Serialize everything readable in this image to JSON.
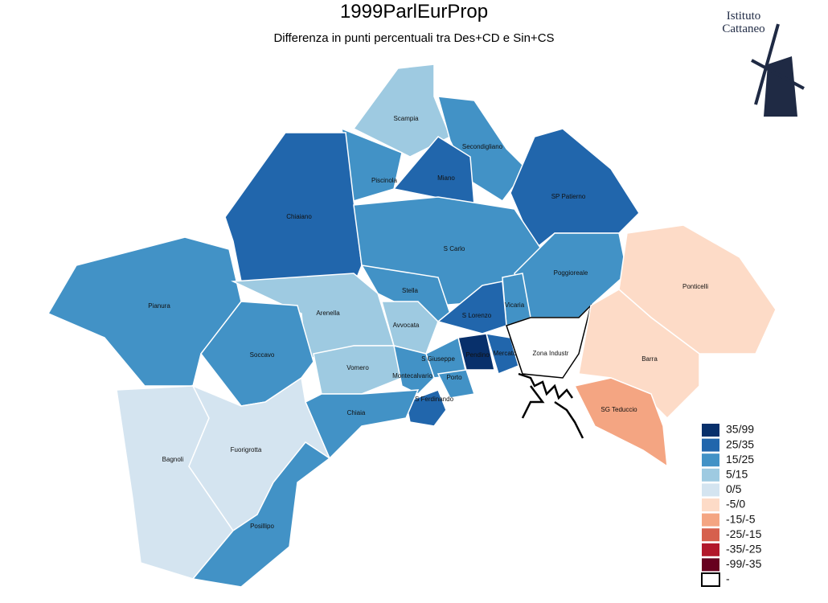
{
  "header": {
    "title": "1999ParlEurProp",
    "subtitle": "Differenza in punti percentuali tra Des+CD e Sin+CS"
  },
  "logo": {
    "lines": [
      "Istituto",
      "Cattaneo"
    ]
  },
  "legend": [
    {
      "label": "35/99",
      "color": "#08306b"
    },
    {
      "label": "25/35",
      "color": "#2166ac"
    },
    {
      "label": "15/25",
      "color": "#4292c6"
    },
    {
      "label": "5/15",
      "color": "#9ecae1"
    },
    {
      "label": "0/5",
      "color": "#d4e4f0"
    },
    {
      "label": "-5/0",
      "color": "#fddbc7"
    },
    {
      "label": "-15/-5",
      "color": "#f4a582"
    },
    {
      "label": "-25/-15",
      "color": "#d6604d"
    },
    {
      "label": "-35/-25",
      "color": "#b2182b"
    },
    {
      "label": "-99/-35",
      "color": "#67001f"
    },
    {
      "label": "-",
      "color": "#ffffff"
    }
  ],
  "districts": [
    {
      "name": "Scampia",
      "class": 3
    },
    {
      "name": "Secondigliano",
      "class": 2
    },
    {
      "name": "Miano",
      "class": 1
    },
    {
      "name": "Piscinola",
      "class": 2
    },
    {
      "name": "Chiaiano",
      "class": 1
    },
    {
      "name": "SP Patierno",
      "class": 1
    },
    {
      "name": "S Carlo",
      "class": 2
    },
    {
      "name": "Poggioreale",
      "class": 2
    },
    {
      "name": "Pianura",
      "class": 2
    },
    {
      "name": "Stella",
      "class": 2
    },
    {
      "name": "Arenella",
      "class": 3
    },
    {
      "name": "Avvocata",
      "class": 3
    },
    {
      "name": "Vicaria",
      "class": 2
    },
    {
      "name": "S Lorenzo",
      "class": 1
    },
    {
      "name": "Pendino",
      "class": 0
    },
    {
      "name": "Mercato",
      "class": 1
    },
    {
      "name": "Zona Industr",
      "class": 10
    },
    {
      "name": "Ponticelli",
      "class": 5
    },
    {
      "name": "Barra",
      "class": 5
    },
    {
      "name": "SG Teduccio",
      "class": 6
    },
    {
      "name": "Soccavo",
      "class": 2
    },
    {
      "name": "Vomero",
      "class": 3
    },
    {
      "name": "S Giuseppe",
      "class": 2
    },
    {
      "name": "Montecalvario",
      "class": 2
    },
    {
      "name": "Porto",
      "class": 2
    },
    {
      "name": "S Ferdinando",
      "class": 1
    },
    {
      "name": "Chiaia",
      "class": 2
    },
    {
      "name": "Bagnoli",
      "class": 4
    },
    {
      "name": "Fuorigrotta",
      "class": 4
    },
    {
      "name": "Posillipo",
      "class": 2
    }
  ]
}
